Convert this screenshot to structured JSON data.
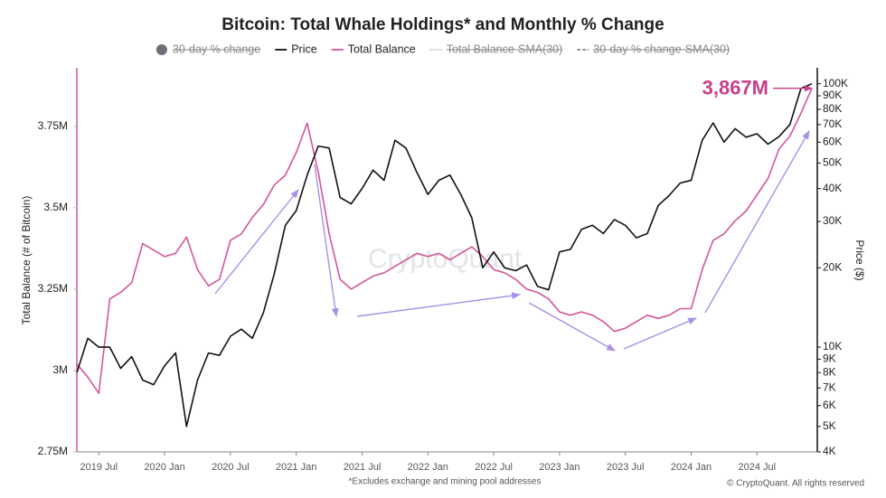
{
  "chart_data": {
    "type": "line",
    "title": "Bitcoin: Total Whale Holdings* and Monthly % Change",
    "footnote": "*Excludes exchange and mining pool addresses",
    "source": "© CryptoQuant. All rights reserved",
    "watermark": "CryptoQuant",
    "y_label": "Total Balance (# of Bitcoin)",
    "y2_label": "Price ($)",
    "y2_log": true,
    "grid": false,
    "left_axis_color": "#d4569a",
    "x": [
      "2019-05",
      "2019-06",
      "2019-07",
      "2019-08",
      "2019-09",
      "2019-10",
      "2019-11",
      "2019-12",
      "2020-01",
      "2020-02",
      "2020-03",
      "2020-04",
      "2020-05",
      "2020-06",
      "2020-07",
      "2020-08",
      "2020-09",
      "2020-10",
      "2020-11",
      "2020-12",
      "2021-01",
      "2021-02",
      "2021-03",
      "2021-04",
      "2021-05",
      "2021-06",
      "2021-07",
      "2021-08",
      "2021-09",
      "2021-10",
      "2021-11",
      "2021-12",
      "2022-01",
      "2022-02",
      "2022-03",
      "2022-04",
      "2022-05",
      "2022-06",
      "2022-07",
      "2022-08",
      "2022-09",
      "2022-10",
      "2022-11",
      "2022-12",
      "2023-01",
      "2023-02",
      "2023-03",
      "2023-04",
      "2023-05",
      "2023-06",
      "2023-07",
      "2023-08",
      "2023-09",
      "2023-10",
      "2023-11",
      "2023-12",
      "2024-01",
      "2024-02",
      "2024-03",
      "2024-04",
      "2024-05",
      "2024-06",
      "2024-07",
      "2024-08",
      "2024-09",
      "2024-10",
      "2024-11",
      "2024-12"
    ],
    "xlim": [
      "2019-05",
      "2024-12"
    ],
    "xticks": [
      {
        "value": "2019-07",
        "label": "2019 Jul"
      },
      {
        "value": "2020-01",
        "label": "2020 Jan"
      },
      {
        "value": "2020-07",
        "label": "2020 Jul"
      },
      {
        "value": "2021-01",
        "label": "2021 Jan"
      },
      {
        "value": "2021-07",
        "label": "2021 Jul"
      },
      {
        "value": "2022-01",
        "label": "2022 Jan"
      },
      {
        "value": "2022-07",
        "label": "2022 Jul"
      },
      {
        "value": "2023-01",
        "label": "2023 Jan"
      },
      {
        "value": "2023-07",
        "label": "2023 Jul"
      },
      {
        "value": "2024-01",
        "label": "2024 Jan"
      },
      {
        "value": "2024-07",
        "label": "2024 Jul"
      }
    ],
    "ylim": [
      2750000,
      3930000
    ],
    "yticks": [
      {
        "value": 2750000,
        "label": "2.75M"
      },
      {
        "value": 3000000,
        "label": "3M"
      },
      {
        "value": 3250000,
        "label": "3.25M"
      },
      {
        "value": 3500000,
        "label": "3.5M"
      },
      {
        "value": 3750000,
        "label": "3.75M"
      }
    ],
    "y2lim": [
      4000,
      115000
    ],
    "y2ticks": [
      {
        "value": 4000,
        "label": "4K"
      },
      {
        "value": 5000,
        "label": "5K"
      },
      {
        "value": 6000,
        "label": "6K"
      },
      {
        "value": 7000,
        "label": "7K"
      },
      {
        "value": 8000,
        "label": "8K"
      },
      {
        "value": 9000,
        "label": "9K"
      },
      {
        "value": 10000,
        "label": "10K"
      },
      {
        "value": 20000,
        "label": "20K"
      },
      {
        "value": 30000,
        "label": "30K"
      },
      {
        "value": 40000,
        "label": "40K"
      },
      {
        "value": 50000,
        "label": "50K"
      },
      {
        "value": 60000,
        "label": "60K"
      },
      {
        "value": 70000,
        "label": "70K"
      },
      {
        "value": 80000,
        "label": "80K"
      },
      {
        "value": 90000,
        "label": "90K"
      },
      {
        "value": 100000,
        "label": "100K"
      }
    ],
    "hidden_legend_entries": [
      {
        "name": "30-day % change",
        "color": "#6e6e78",
        "marker": "dot",
        "position": 0
      },
      {
        "name": "Total Balance-SMA(30)",
        "color": "#999999",
        "marker": "dotted",
        "position": 3
      },
      {
        "name": "30-day % change-SMA(30)",
        "color": "#555555",
        "marker": "dashed",
        "position": 4
      }
    ],
    "series": [
      {
        "name": "Price",
        "color": "#111111",
        "axis": "y2",
        "values": [
          8000,
          10800,
          10000,
          10000,
          8300,
          9200,
          7500,
          7200,
          8500,
          9500,
          5000,
          7500,
          9500,
          9300,
          11000,
          11700,
          10800,
          13500,
          19000,
          29000,
          33000,
          45000,
          58000,
          57000,
          37000,
          35000,
          40000,
          47000,
          43000,
          61000,
          57000,
          46000,
          38000,
          43000,
          45000,
          38000,
          31000,
          20000,
          23000,
          20000,
          19500,
          20500,
          17000,
          16500,
          23000,
          23500,
          28000,
          29000,
          27000,
          30500,
          29000,
          26000,
          27000,
          34500,
          37700,
          42000,
          43000,
          61000,
          71000,
          60000,
          67500,
          62700,
          64600,
          59000,
          63000,
          70000,
          96000,
          100000
        ]
      },
      {
        "name": "Total Balance",
        "color": "#d4569a",
        "values": [
          3020000,
          2980000,
          2930000,
          3220000,
          3240000,
          3270000,
          3390000,
          3370000,
          3350000,
          3360000,
          3410000,
          3310000,
          3260000,
          3280000,
          3400000,
          3420000,
          3470000,
          3510000,
          3570000,
          3600000,
          3670000,
          3760000,
          3610000,
          3420000,
          3280000,
          3250000,
          3270000,
          3290000,
          3300000,
          3320000,
          3340000,
          3360000,
          3350000,
          3360000,
          3340000,
          3360000,
          3380000,
          3350000,
          3310000,
          3300000,
          3280000,
          3250000,
          3240000,
          3220000,
          3180000,
          3170000,
          3180000,
          3170000,
          3150000,
          3120000,
          3130000,
          3150000,
          3170000,
          3160000,
          3170000,
          3190000,
          3190000,
          3310000,
          3400000,
          3420000,
          3460000,
          3490000,
          3540000,
          3590000,
          3680000,
          3720000,
          3790000,
          3867000
        ]
      }
    ],
    "annotation": {
      "label": "3,867M",
      "value": 3867000
    }
  }
}
